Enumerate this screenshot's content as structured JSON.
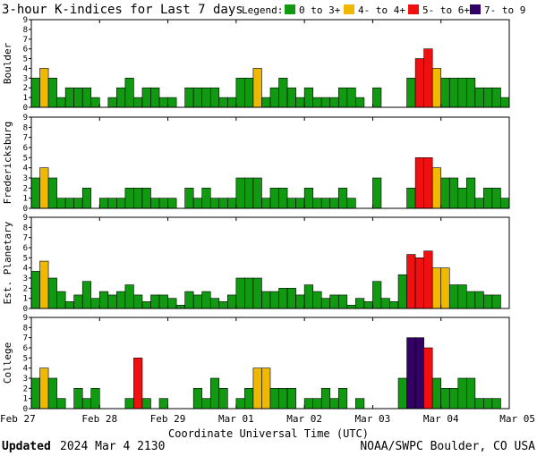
{
  "title": "3-hour K-indices for Last 7 days",
  "legend": {
    "label": "Legend:",
    "items": [
      {
        "label": "0 to 3+",
        "color": "#119911"
      },
      {
        "label": "4- to 4+",
        "color": "#f0b800"
      },
      {
        "label": "5- to 6+",
        "color": "#f01010"
      },
      {
        "label": "7- to 9",
        "color": "#330066"
      }
    ]
  },
  "xlabel": "Coordinate Universal Time (UTC)",
  "x_ticks": [
    "Feb 27",
    "Feb 28",
    "Feb 29",
    "Mar 01",
    "Mar 02",
    "Mar 03",
    "Mar 04",
    "Mar 05"
  ],
  "y_ticks": [
    "0",
    "1",
    "2",
    "3",
    "4",
    "5",
    "6",
    "7",
    "8",
    "9"
  ],
  "footer": {
    "updated_label": "Updated",
    "updated_value": "2024 Mar  4 2130",
    "source": "NOAA/SWPC Boulder, CO USA"
  },
  "chart_data": [
    {
      "type": "bar",
      "title": "Boulder",
      "ylim": [
        0,
        9
      ],
      "x_start": "Feb 27 00 UTC",
      "interval_hours": 3,
      "values": [
        3,
        4,
        3,
        1,
        2,
        2,
        2,
        1,
        0,
        1,
        2,
        3,
        1,
        2,
        2,
        1,
        1,
        0,
        2,
        2,
        2,
        2,
        1,
        1,
        3,
        3,
        4,
        1,
        2,
        3,
        2,
        1,
        2,
        1,
        1,
        1,
        2,
        2,
        1,
        0,
        2,
        0,
        0,
        0,
        3,
        5,
        6,
        4,
        3,
        3,
        3,
        3,
        2,
        2,
        2,
        1,
        0
      ]
    },
    {
      "type": "bar",
      "title": "Fredericksburg",
      "ylim": [
        0,
        9
      ],
      "x_start": "Feb 27 00 UTC",
      "interval_hours": 3,
      "values": [
        3,
        4,
        3,
        1,
        1,
        1,
        2,
        0,
        1,
        1,
        1,
        2,
        2,
        2,
        1,
        1,
        1,
        0,
        2,
        1,
        2,
        1,
        1,
        1,
        3,
        3,
        3,
        1,
        2,
        2,
        1,
        1,
        2,
        1,
        1,
        1,
        2,
        1,
        0,
        0,
        3,
        0,
        0,
        0,
        2,
        5,
        5,
        4,
        3,
        3,
        2,
        3,
        1,
        2,
        2,
        1,
        0
      ]
    },
    {
      "type": "bar",
      "title": "Est. Planetary",
      "ylim": [
        0,
        9
      ],
      "x_start": "Feb 27 00 UTC",
      "interval_hours": 3,
      "values": [
        3.67,
        4.67,
        3,
        1.67,
        0.67,
        1.33,
        2.67,
        1,
        1.67,
        1.33,
        1.67,
        2.33,
        1.33,
        0.67,
        1.33,
        1.33,
        1,
        0.33,
        1.67,
        1.33,
        1.67,
        1,
        0.67,
        1.33,
        3,
        3,
        3,
        1.67,
        1.67,
        2,
        2,
        1.33,
        2.33,
        1.67,
        1,
        1.33,
        1.33,
        0.33,
        1,
        0.67,
        2.67,
        1,
        0.67,
        3.33,
        5.33,
        5,
        5.67,
        4,
        4,
        2.33,
        2.33,
        1.67,
        1.67,
        1.33,
        1.33
      ]
    },
    {
      "type": "bar",
      "title": "College",
      "ylim": [
        0,
        9
      ],
      "x_start": "Feb 27 00 UTC",
      "interval_hours": 3,
      "values": [
        3,
        4,
        3,
        1,
        0,
        2,
        1,
        2,
        0,
        0,
        0,
        1,
        5,
        1,
        0,
        1,
        0,
        0,
        0,
        2,
        1,
        3,
        2,
        0,
        1,
        2,
        4,
        4,
        2,
        2,
        2,
        0,
        1,
        1,
        2,
        1,
        2,
        0,
        1,
        0,
        0,
        0,
        0,
        3,
        7,
        7,
        6,
        3,
        2,
        2,
        3,
        3,
        1,
        1,
        1,
        0,
        0
      ]
    }
  ]
}
